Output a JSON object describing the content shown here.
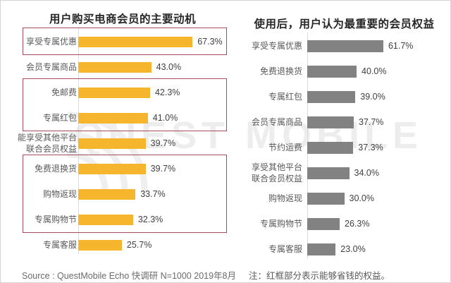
{
  "watermark": {
    "text": "QUEST MOBILE"
  },
  "colors": {
    "left_bar": "#f5b52c",
    "right_bar": "#828282",
    "box_border": "#a54b5f",
    "brand_orange": "#f0a330",
    "axis_line": "#dbdbdb"
  },
  "chart_data": [
    {
      "type": "bar",
      "orientation": "horizontal",
      "title": "用户购买电商会员的主要动机",
      "categories": [
        "享受专属优惠",
        "会员专属商品",
        "免邮费",
        "专属红包",
        "能享受其他平台\n联合会员权益",
        "免费退换货",
        "购物返现",
        "专属购物节",
        "专属客服"
      ],
      "values": [
        67.3,
        43.0,
        42.3,
        41.0,
        39.7,
        39.7,
        33.7,
        32.3,
        25.7
      ],
      "value_labels": [
        "67.3%",
        "43.0%",
        "42.3%",
        "41.0%",
        "39.7%",
        "39.7%",
        "33.7%",
        "32.3%",
        "25.7%"
      ],
      "unit": "%",
      "xlim": [
        0,
        70
      ],
      "grid": false,
      "legend": "none",
      "bar_color_key": "left_bar",
      "highlight_box_rows": [
        [
          0,
          0
        ],
        [
          2,
          3
        ],
        [
          5,
          7
        ]
      ],
      "highlight_meaning": "红框部分表示能够省钱的权益"
    },
    {
      "type": "bar",
      "orientation": "horizontal",
      "title": "使用后，用户认为最重要的会员权益",
      "categories": [
        "享受专属优惠",
        "免费退换货",
        "专属红包",
        "会员专属商品",
        "节约运费",
        "享受其他平台\n联合会员权益",
        "购物返现",
        "专属购物节",
        "专属客服"
      ],
      "values": [
        61.7,
        40.0,
        39.0,
        37.7,
        37.3,
        34.0,
        30.0,
        26.3,
        23.0
      ],
      "value_labels": [
        "61.7%",
        "40.0%",
        "39.0%",
        "37.7%",
        "37.3%",
        "34.0%",
        "30.0%",
        "26.3%",
        "23.0%"
      ],
      "unit": "%",
      "xlim": [
        0,
        65
      ],
      "grid": false,
      "legend": "none",
      "bar_color_key": "right_bar",
      "highlight_box_rows": []
    }
  ],
  "footer": {
    "source_prefix": "Source : ",
    "source_brand": "QuestMobile",
    "source_suffix": " Echo 快调研 N=1000 2019年8月",
    "note": "注：红框部分表示能够省钱的权益。"
  }
}
